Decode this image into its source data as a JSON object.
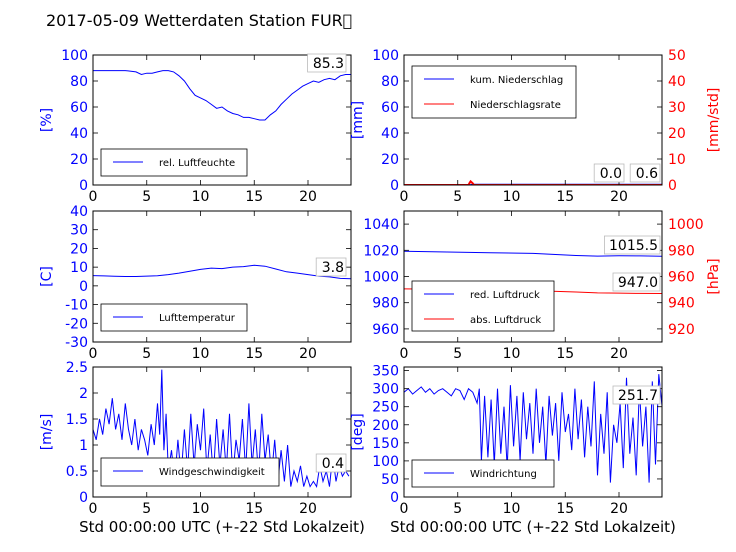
{
  "figure": {
    "title": "2017-05-09 Wetterdaten Station FUR\u0000",
    "xlabel": "Std 00:00:00 UTC (+-22 Std Lokalzeit)"
  },
  "colors": {
    "primary": "#0000ff",
    "secondary": "#ff0000",
    "axis": "#000000"
  },
  "chart_data": [
    {
      "type": "line",
      "ylabel": "[%]",
      "xlim": [
        0,
        24
      ],
      "ylim": [
        0,
        100
      ],
      "xticks": [
        0,
        5,
        10,
        15,
        20
      ],
      "yticks": [
        0,
        20,
        40,
        60,
        80,
        100
      ],
      "legend_placement": "lower-left",
      "annotation": "85.3",
      "series": [
        {
          "name": "rel. Luftfeuchte",
          "x": [
            0,
            1,
            2,
            3,
            4,
            4.5,
            5,
            5.5,
            6,
            6.5,
            7,
            7.5,
            8,
            8.5,
            9,
            9.5,
            10,
            10.5,
            11,
            11.5,
            12,
            12.5,
            13,
            13.5,
            14,
            14.5,
            15,
            15.5,
            16,
            16.5,
            17,
            17.5,
            18,
            18.5,
            19,
            19.5,
            20,
            20.5,
            21,
            21.5,
            22,
            22.5,
            23,
            23.5,
            24
          ],
          "y": [
            88,
            88,
            88,
            88,
            87,
            85,
            86,
            86,
            87,
            88,
            88,
            87,
            84,
            80,
            74,
            69,
            67,
            65,
            62,
            59,
            60,
            57,
            55,
            54,
            52,
            52,
            51,
            50,
            50,
            54,
            57,
            62,
            66,
            70,
            73,
            76,
            78,
            80,
            79,
            81,
            82,
            81,
            84,
            85,
            85
          ]
        }
      ]
    },
    {
      "type": "line",
      "ylabel": "[mm]",
      "ylabel_right": "[mm/std]",
      "xlim": [
        0,
        24
      ],
      "ylim": [
        0,
        100
      ],
      "ylim_right": [
        0,
        50
      ],
      "xticks": [
        0,
        5,
        10,
        15,
        20
      ],
      "yticks": [
        0,
        20,
        40,
        60,
        80,
        100
      ],
      "yticks_right": [
        0,
        10,
        20,
        30,
        40,
        50
      ],
      "legend_placement": "upper-left",
      "annotations": [
        "0.0",
        "0.6"
      ],
      "series": [
        {
          "name": "kum. Niederschlag",
          "x": [
            0,
            6,
            6.4,
            24
          ],
          "y": [
            0,
            0,
            0.6,
            0.6
          ]
        },
        {
          "name": "Niederschlagsrate",
          "x": [
            0,
            6,
            6.1,
            6.2,
            6.3,
            6.4,
            6.5,
            24
          ],
          "y": [
            0,
            0,
            0.8,
            1.4,
            1.0,
            0.6,
            0,
            0
          ]
        }
      ]
    },
    {
      "type": "line",
      "ylabel": "[C]",
      "xlim": [
        0,
        24
      ],
      "ylim": [
        -30,
        40
      ],
      "xticks": [
        0,
        5,
        10,
        15,
        20
      ],
      "yticks": [
        -30,
        -20,
        -10,
        0,
        10,
        20,
        30,
        40
      ],
      "legend_placement": "lower-left",
      "annotation": "3.8",
      "series": [
        {
          "name": "Lufttemperatur",
          "x": [
            0,
            1,
            2,
            3,
            4,
            5,
            6,
            7,
            8,
            9,
            10,
            11,
            12,
            13,
            14,
            15,
            16,
            17,
            18,
            19,
            20,
            21,
            22,
            23,
            24
          ],
          "y": [
            5.5,
            5.3,
            5.1,
            5.0,
            5.0,
            5.2,
            5.4,
            6.0,
            6.8,
            7.8,
            8.8,
            9.5,
            9.2,
            10.0,
            10.3,
            11.0,
            10.5,
            9.0,
            7.5,
            6.8,
            6.0,
            5.2,
            4.8,
            4.0,
            3.8
          ]
        }
      ]
    },
    {
      "type": "line",
      "ylabel_right": "[hPa]",
      "xlim": [
        0,
        24
      ],
      "ylim": [
        950,
        1050
      ],
      "ylim_right": [
        910,
        1010
      ],
      "xticks": [
        0,
        5,
        10,
        15,
        20
      ],
      "yticks": [
        960,
        980,
        1000,
        1020,
        1040
      ],
      "yticks_right": [
        920,
        940,
        960,
        980,
        1000
      ],
      "legend_placement": "lower-left",
      "annotations": [
        "1015.5",
        "947.0"
      ],
      "series": [
        {
          "name": "red. Luftdruck",
          "x": [
            0,
            4,
            8,
            12,
            16,
            18,
            20,
            22,
            24
          ],
          "y": [
            1019.3,
            1018.7,
            1018.2,
            1017.6,
            1016.0,
            1015.6,
            1015.8,
            1015.7,
            1015.5
          ]
        },
        {
          "name": "abs. Luftdruck",
          "x": [
            0,
            4,
            8,
            12,
            16,
            18,
            20,
            22,
            24
          ],
          "y": [
            950.5,
            950.2,
            949.8,
            949.2,
            948.2,
            947.5,
            947.3,
            947.1,
            947.0
          ]
        }
      ]
    },
    {
      "type": "line",
      "ylabel": "[m/s]",
      "xlim": [
        0,
        24
      ],
      "ylim": [
        0,
        2.5
      ],
      "xticks": [
        0,
        5,
        10,
        15,
        20
      ],
      "yticks": [
        0.0,
        0.5,
        1.0,
        1.5,
        2.0,
        2.5
      ],
      "legend_placement": "lower-center",
      "annotation": "0.4",
      "series": [
        {
          "name": "Windgeschwindigkeit",
          "x": [
            0,
            0.3,
            0.6,
            0.9,
            1.2,
            1.5,
            1.8,
            2.1,
            2.4,
            2.7,
            3,
            3.3,
            3.6,
            3.9,
            4.2,
            4.5,
            4.8,
            5.1,
            5.4,
            5.7,
            6,
            6.2,
            6.4,
            6.6,
            6.8,
            7,
            7.3,
            7.6,
            7.9,
            8.2,
            8.5,
            8.8,
            9.1,
            9.4,
            9.7,
            10,
            10.3,
            10.6,
            10.9,
            11.2,
            11.5,
            11.8,
            12.1,
            12.4,
            12.7,
            13,
            13.3,
            13.6,
            13.9,
            14.2,
            14.5,
            14.8,
            15.1,
            15.4,
            15.7,
            16,
            16.3,
            16.6,
            16.9,
            17.2,
            17.5,
            17.8,
            18.1,
            18.4,
            18.7,
            19,
            19.3,
            19.6,
            19.9,
            20.2,
            20.5,
            20.8,
            21.1,
            21.4,
            21.7,
            22,
            22.3,
            22.6,
            22.9,
            23.2,
            23.5,
            23.8
          ],
          "y": [
            1.3,
            1.1,
            1.5,
            1.2,
            1.7,
            1.4,
            1.9,
            1.3,
            1.6,
            1.1,
            1.8,
            1.3,
            1.0,
            1.5,
            0.9,
            1.3,
            1.1,
            0.8,
            1.4,
            1.0,
            1.8,
            1.2,
            2.45,
            0.9,
            1.6,
            0.5,
            0.9,
            0.3,
            1.1,
            0.4,
            1.3,
            0.5,
            1.6,
            0.6,
            1.4,
            0.9,
            1.7,
            0.5,
            1.2,
            0.4,
            1.5,
            0.6,
            1.3,
            0.5,
            1.6,
            0.4,
            1.1,
            0.7,
            1.5,
            0.5,
            1.8,
            0.6,
            1.3,
            0.4,
            1.6,
            0.7,
            1.2,
            0.4,
            1.1,
            0.3,
            0.9,
            0.3,
            1.0,
            0.2,
            0.5,
            0.3,
            0.6,
            0.2,
            0.4,
            0.2,
            0.3,
            0.2,
            0.6,
            0.3,
            0.5,
            0.2,
            0.8,
            0.3,
            0.6,
            0.4,
            0.5,
            0.4
          ]
        }
      ]
    },
    {
      "type": "line",
      "ylabel": "[deg]",
      "xlim": [
        0,
        24
      ],
      "ylim": [
        0,
        360
      ],
      "xticks": [
        0,
        5,
        10,
        15,
        20
      ],
      "yticks": [
        0,
        50,
        100,
        150,
        200,
        250,
        300,
        350
      ],
      "legend_placement": "lower-left",
      "annotation": "251.7",
      "series": [
        {
          "name": "Windrichtung",
          "x": [
            0,
            0.4,
            0.8,
            1.2,
            1.6,
            2,
            2.4,
            2.8,
            3.2,
            3.6,
            4,
            4.4,
            4.8,
            5.2,
            5.6,
            6,
            6.4,
            6.8,
            7,
            7.2,
            7.5,
            7.8,
            8.1,
            8.4,
            8.7,
            9,
            9.3,
            9.6,
            9.9,
            10.2,
            10.5,
            10.8,
            11.1,
            11.4,
            11.7,
            12,
            12.3,
            12.6,
            12.9,
            13.2,
            13.5,
            13.8,
            14.1,
            14.4,
            14.7,
            15,
            15.3,
            15.6,
            15.9,
            16.2,
            16.5,
            16.8,
            17.1,
            17.4,
            17.7,
            18,
            18.3,
            18.6,
            18.9,
            19.2,
            19.5,
            19.8,
            20.1,
            20.4,
            20.7,
            21,
            21.3,
            21.6,
            21.9,
            22.2,
            22.5,
            22.8,
            23.1,
            23.4,
            23.7,
            24
          ],
          "y": [
            290,
            300,
            285,
            295,
            305,
            290,
            300,
            285,
            295,
            300,
            290,
            280,
            300,
            295,
            270,
            300,
            290,
            260,
            300,
            100,
            280,
            110,
            270,
            90,
            300,
            120,
            250,
            80,
            310,
            140,
            280,
            100,
            290,
            160,
            260,
            120,
            300,
            150,
            250,
            90,
            280,
            170,
            260,
            100,
            290,
            180,
            230,
            130,
            300,
            160,
            270,
            110,
            250,
            140,
            320,
            60,
            230,
            120,
            290,
            40,
            200,
            150,
            260,
            80,
            330,
            120,
            220,
            60,
            300,
            140,
            250,
            40,
            320,
            90,
            340,
            252
          ]
        }
      ]
    }
  ]
}
